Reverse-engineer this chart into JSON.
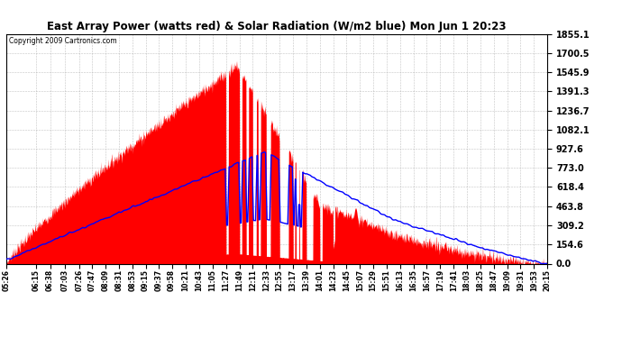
{
  "title": "East Array Power (watts red) & Solar Radiation (W/m2 blue) Mon Jun 1 20:23",
  "copyright": "Copyright 2009 Cartronics.com",
  "yticks": [
    0.0,
    154.6,
    309.2,
    463.8,
    618.4,
    773.0,
    927.6,
    1082.1,
    1236.7,
    1391.3,
    1545.9,
    1700.5,
    1855.1
  ],
  "ymax": 1855.1,
  "ymin": 0.0,
  "x_labels": [
    "05:26",
    "06:15",
    "06:38",
    "07:03",
    "07:26",
    "07:47",
    "08:09",
    "08:31",
    "08:53",
    "09:15",
    "09:37",
    "09:58",
    "10:21",
    "10:43",
    "11:05",
    "11:27",
    "11:49",
    "12:11",
    "12:33",
    "12:55",
    "13:17",
    "13:39",
    "14:01",
    "14:23",
    "14:45",
    "15:07",
    "15:29",
    "15:51",
    "16:13",
    "16:35",
    "16:57",
    "17:19",
    "17:41",
    "18:03",
    "18:25",
    "18:47",
    "19:09",
    "19:31",
    "19:53",
    "20:15"
  ],
  "background_color": "#ffffff",
  "plot_bg_color": "#ffffff",
  "grid_color": "#aaaaaa",
  "red_fill_color": "#ff0000",
  "blue_line_color": "#0000ff",
  "figwidth": 6.9,
  "figheight": 3.75,
  "dpi": 100
}
